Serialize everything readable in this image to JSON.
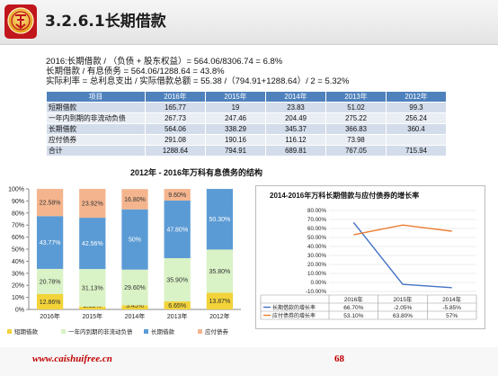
{
  "header": {
    "title": "3.2.6.1长期借款"
  },
  "formulas": [
    "2016:长期借款 / （负债 + 股东权益）= 564.06/8306.74 = 6.8%",
    "长期借款 / 有息债务 = 564.06/1288.64 = 43.8%",
    "实际利率 = 总利息支出 / 实际借款总额 = 55.38 /（794.91+1288.64）/ 2 = 5.32%"
  ],
  "table": {
    "headers": [
      "项目",
      "2016年",
      "2015年",
      "2014年",
      "2013年",
      "2012年"
    ],
    "rows": [
      [
        "短期借款",
        "165.77",
        "19",
        "23.83",
        "51.02",
        "99.3"
      ],
      [
        "一年内到期的非流动负债",
        "267.73",
        "247.46",
        "204.49",
        "275.22",
        "256.24"
      ],
      [
        "长期借款",
        "564.06",
        "338.29",
        "345.37",
        "366.83",
        "360.4"
      ],
      [
        "应付债券",
        "291.08",
        "190.16",
        "116.12",
        "73.98",
        ""
      ],
      [
        "合计",
        "1288.64",
        "794.91",
        "689.81",
        "767.05",
        "715.94"
      ]
    ]
  },
  "chart_data": [
    {
      "type": "bar",
      "stacked": true,
      "title": "2012年 - 2016年万科有息债务的结构",
      "categories": [
        "2016年",
        "2015年",
        "2014年",
        "2013年",
        "2012年"
      ],
      "y_ticks": [
        "0%",
        "10%",
        "20%",
        "30%",
        "40%",
        "50%",
        "60%",
        "70%",
        "80%",
        "90%",
        "100%"
      ],
      "ylim": [
        0,
        100
      ],
      "grid": false,
      "legend": "bottom",
      "series": [
        {
          "name": "短期借款",
          "color": "#f2d339",
          "values": [
            12.86,
            2.39,
            3.45,
            6.65,
            13.87
          ],
          "labels": [
            "12.86%",
            "2.39%",
            "3.45%",
            "6.65%",
            "13.87%"
          ]
        },
        {
          "name": "一年内到期的非流动负债",
          "color": "#d9f2c6",
          "values": [
            20.78,
            31.13,
            29.6,
            35.9,
            35.8
          ],
          "labels": [
            "20.78%",
            "31.13%",
            "29.60%",
            "35.90%",
            "35.80%"
          ]
        },
        {
          "name": "长期借款",
          "color": "#5b9bd5",
          "values": [
            43.77,
            42.56,
            50,
            47.8,
            50.3
          ],
          "labels": [
            "43.77%",
            "42.56%",
            "50%",
            "47.80%",
            "50.30%"
          ]
        },
        {
          "name": "应付债券",
          "color": "#f4b58e",
          "values": [
            22.58,
            23.92,
            16.8,
            9.6,
            0
          ],
          "labels": [
            "22.58%",
            "23.92%",
            "16.80%",
            "9.60%",
            "0"
          ]
        }
      ]
    },
    {
      "type": "line",
      "title": "2014-2016年万科长期借款与应付债券的增长率",
      "categories": [
        "2016年",
        "2015年",
        "2014年"
      ],
      "y_ticks": [
        "-10.00%",
        "0.00%",
        "10.00%",
        "20.00%",
        "30.00%",
        "40.00%",
        "50.00%",
        "60.00%",
        "70.00%",
        "80.00%"
      ],
      "ylim": [
        -10,
        80
      ],
      "grid": true,
      "legend": "bottom-table",
      "series": [
        {
          "name": "长期借款的增长率",
          "color": "#4472c4",
          "values": [
            66.7,
            -2.05,
            -5.85
          ],
          "labels": [
            "66.70%",
            "-2.05%",
            "-5.85%"
          ]
        },
        {
          "name": "应付债券的增长率",
          "color": "#ed7d31",
          "values": [
            53.1,
            63.8,
            57
          ],
          "labels": [
            "53.10%",
            "63.80%",
            "57%"
          ]
        }
      ]
    }
  ],
  "footer": {
    "url": "www.caishuifree.cn",
    "page_number": "68"
  }
}
